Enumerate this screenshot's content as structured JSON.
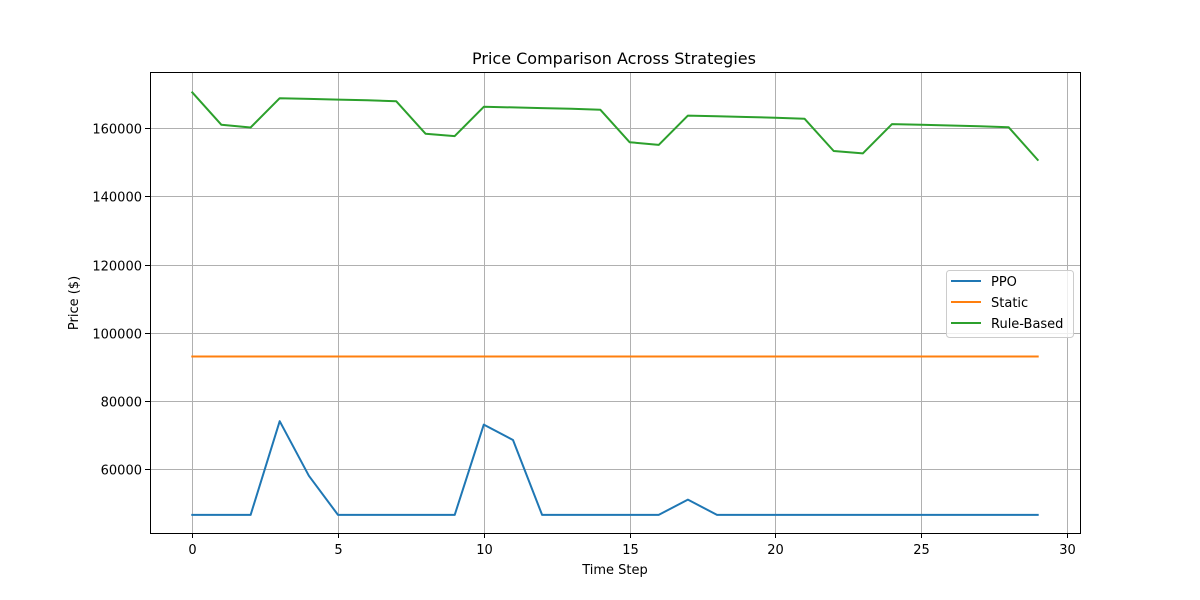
{
  "chart_data": {
    "type": "line",
    "title": "Price Comparison Across Strategies",
    "xlabel": "Time Step",
    "ylabel": "Price ($)",
    "xlim": [
      -1.45,
      30.45
    ],
    "ylim": [
      41200,
      176500
    ],
    "x_ticks": [
      0,
      5,
      10,
      15,
      20,
      25,
      30
    ],
    "y_ticks": [
      60000,
      80000,
      100000,
      120000,
      140000,
      160000
    ],
    "grid": true,
    "legend_position": "center-right",
    "x": [
      0,
      1,
      2,
      3,
      4,
      5,
      6,
      7,
      8,
      9,
      10,
      11,
      12,
      13,
      14,
      15,
      16,
      17,
      18,
      19,
      20,
      21,
      22,
      23,
      24,
      25,
      26,
      27,
      28,
      29
    ],
    "series": [
      {
        "name": "PPO",
        "color": "#1f77b4",
        "values": [
          46500,
          46500,
          46500,
          74000,
          58000,
          46500,
          46500,
          46500,
          46500,
          46500,
          73000,
          68500,
          46500,
          46500,
          46500,
          46500,
          46500,
          51000,
          46500,
          46500,
          46500,
          46500,
          46500,
          46500,
          46500,
          46500,
          46500,
          46500,
          46500,
          46500
        ]
      },
      {
        "name": "Static",
        "color": "#ff7f0e",
        "values": [
          93000,
          93000,
          93000,
          93000,
          93000,
          93000,
          93000,
          93000,
          93000,
          93000,
          93000,
          93000,
          93000,
          93000,
          93000,
          93000,
          93000,
          93000,
          93000,
          93000,
          93000,
          93000,
          93000,
          93000,
          93000,
          93000,
          93000,
          93000,
          93000,
          93000
        ]
      },
      {
        "name": "Rule-Based",
        "color": "#2ca02c",
        "values": [
          170500,
          161000,
          160200,
          168800,
          168600,
          168400,
          168200,
          167900,
          158400,
          157700,
          166300,
          166100,
          165900,
          165700,
          165400,
          155900,
          155100,
          163700,
          163500,
          163300,
          163100,
          162800,
          153300,
          152600,
          161200,
          161000,
          160800,
          160600,
          160300,
          150700
        ]
      }
    ]
  }
}
